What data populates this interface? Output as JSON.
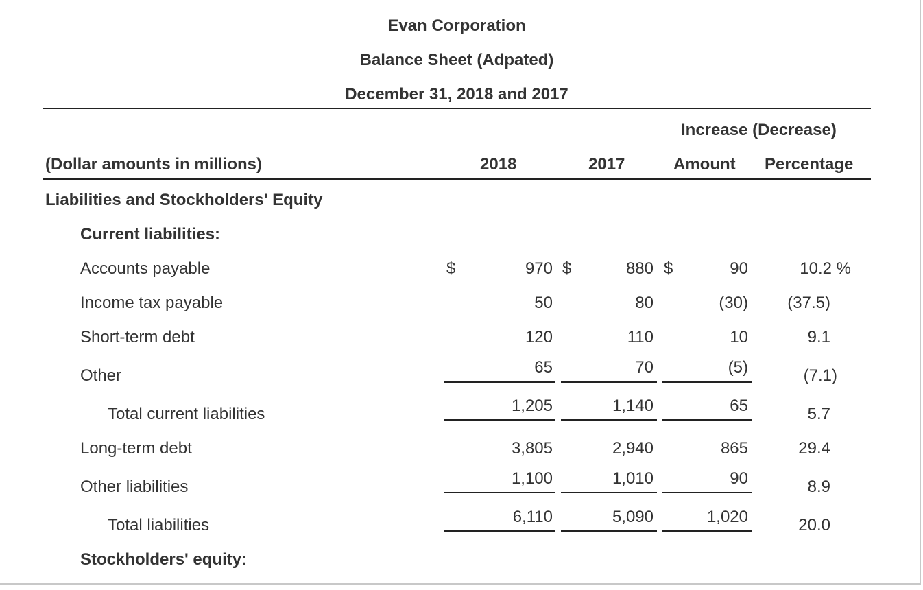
{
  "header": {
    "company": "Evan Corporation",
    "statement": "Balance Sheet (Adpated)",
    "period": "December 31, 2018 and 2017"
  },
  "columns": {
    "group_label": "Increase (Decrease)",
    "units_label": "(Dollar amounts in millions)",
    "year_2018": "2018",
    "year_2017": "2017",
    "amount": "Amount",
    "percentage": "Percentage"
  },
  "sections": {
    "main": "Liabilities and Stockholders' Equity",
    "current_liabilities": "Current liabilities:",
    "stockholders_equity": "Stockholders' equity:"
  },
  "currency_symbol": "$",
  "rows": [
    {
      "label": "Accounts payable",
      "v2018": "970",
      "v2017": "880",
      "amount": "90",
      "pct": "10.2 %"
    },
    {
      "label": "Income tax payable",
      "v2018": "50",
      "v2017": "80",
      "amount": "(30)",
      "pct": "(37.5)"
    },
    {
      "label": "Short-term debt",
      "v2018": "120",
      "v2017": "110",
      "amount": "10",
      "pct": "9.1"
    },
    {
      "label": "Other",
      "v2018": "65",
      "v2017": "70",
      "amount": "(5)",
      "pct": "(7.1)"
    },
    {
      "label": "Total current liabilities",
      "v2018": "1,205",
      "v2017": "1,140",
      "amount": "65",
      "pct": "5.7"
    },
    {
      "label": "Long-term debt",
      "v2018": "3,805",
      "v2017": "2,940",
      "amount": "865",
      "pct": "29.4"
    },
    {
      "label": "Other liabilities",
      "v2018": "1,100",
      "v2017": "1,010",
      "amount": "90",
      "pct": "8.9"
    },
    {
      "label": "Total liabilities",
      "v2018": "6,110",
      "v2017": "5,090",
      "amount": "1,020",
      "pct": "20.0"
    }
  ]
}
